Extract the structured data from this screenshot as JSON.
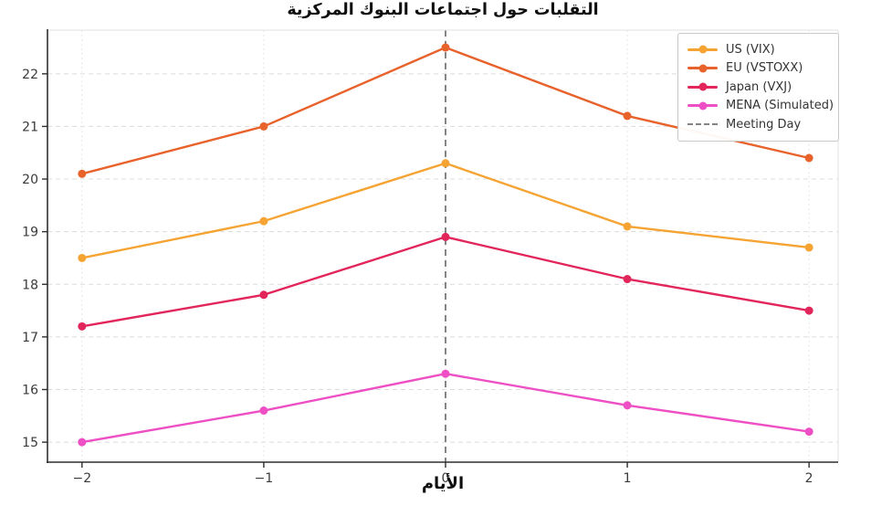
{
  "page": {
    "background": "#ffffff"
  },
  "chart_data": {
    "type": "line",
    "title": "التقلبات حول اجتماعات البنوك المركزية",
    "xlabel": "الأيام",
    "ylabel": "",
    "x": [
      -2,
      -1,
      0,
      1,
      2
    ],
    "xtick_labels": [
      "−2",
      "−1",
      "0",
      "1",
      "2"
    ],
    "yticks": [
      15,
      16,
      17,
      18,
      19,
      20,
      21,
      22
    ],
    "xlim": [
      -2.19,
      2.16
    ],
    "ylim": [
      14.62,
      22.83
    ],
    "grid": true,
    "legend_position": "upper-right",
    "series": [
      {
        "name": "US (VIX)",
        "color": "#F5A434",
        "marker": "circle",
        "values": [
          18.5,
          19.2,
          20.3,
          19.1,
          18.7
        ]
      },
      {
        "name": "EU (VSTOXX)",
        "color": "#E8622C",
        "marker": "circle",
        "values": [
          20.1,
          21.0,
          22.5,
          21.2,
          20.4
        ]
      },
      {
        "name": "Japan (VXJ)",
        "color": "#E2265C",
        "marker": "circle",
        "values": [
          17.2,
          17.8,
          18.9,
          18.1,
          17.5
        ]
      },
      {
        "name": "MENA (Simulated)",
        "color": "#EE4FC5",
        "marker": "circle",
        "values": [
          15.0,
          15.6,
          16.3,
          15.7,
          15.2
        ]
      }
    ],
    "reference_line": {
      "label": "Meeting Day",
      "x": 0,
      "color": "#848484",
      "style": "dashed"
    },
    "axis_style": {
      "spine_dark": "#2e2e2e",
      "spine_light": "#e1e1e1",
      "grid_horizontal": "#dcdcdc",
      "grid_vertical": "#e6e6e6",
      "tick_label_color": "#3a3a3a"
    }
  }
}
